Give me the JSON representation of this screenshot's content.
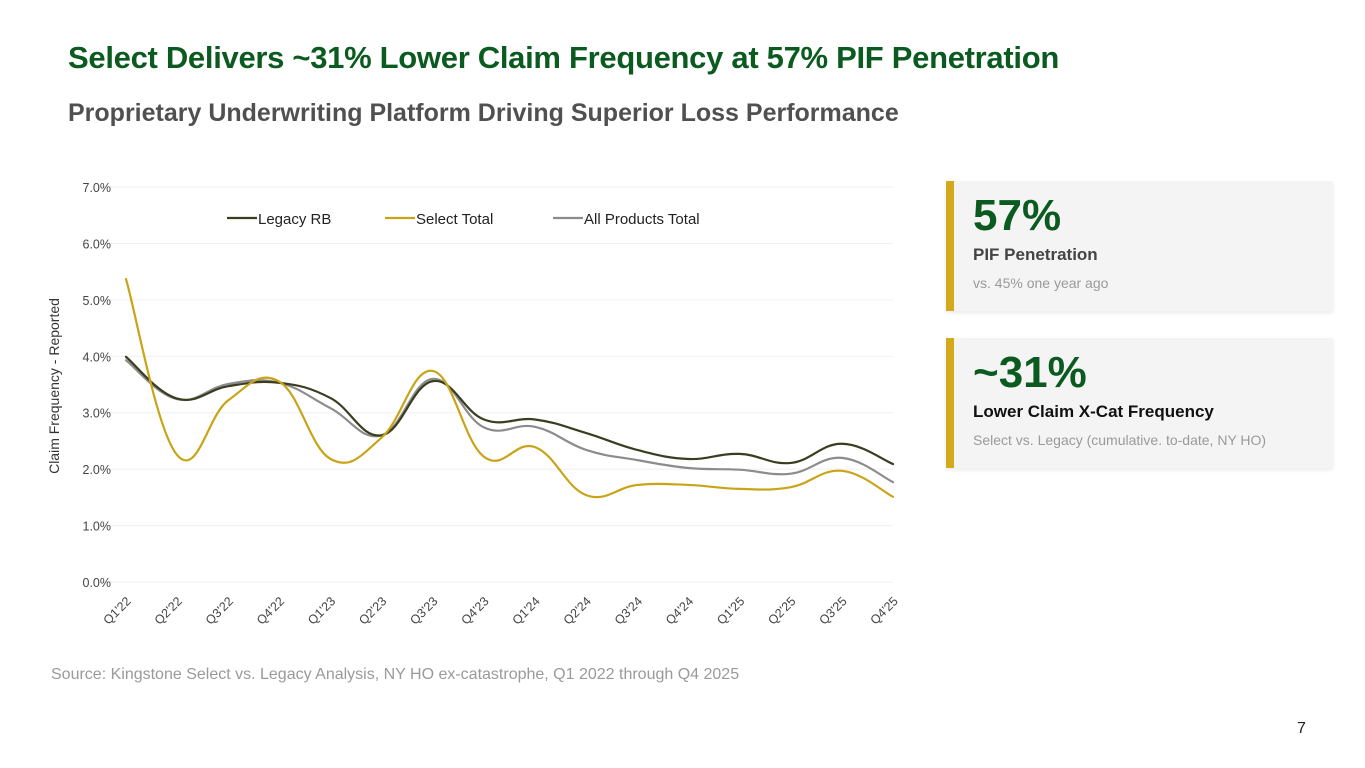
{
  "header": {
    "title": "Select Delivers ~31% Lower Claim Frequency at 57% PIF Penetration",
    "subtitle": "Proprietary Underwriting Platform Driving Superior Loss Performance"
  },
  "cards": [
    {
      "value": "57%",
      "label": "PIF Penetration",
      "note": "vs. 45% one year ago"
    },
    {
      "value": "~31%",
      "label": "Lower Claim X-Cat Frequency",
      "note": "Select vs. Legacy (cumulative. to-date, NY HO)"
    }
  ],
  "footer": {
    "source": "Source: Kingstone Select vs. Legacy Analysis, NY HO ex-catastrophe, Q1 2022 through Q4 2025",
    "page_number": "7"
  },
  "colors": {
    "brand_green": "#0b5a1f",
    "accent_gold": "#d4a91a"
  },
  "chart_data": {
    "type": "line",
    "title": "",
    "xlabel": "",
    "ylabel": "Claim Frequency - Reported",
    "ylim": [
      0,
      7
    ],
    "yticks": [
      0,
      1,
      2,
      3,
      4,
      5,
      6,
      7
    ],
    "ytick_format": "percent_1dp",
    "grid": true,
    "legend_position": "top",
    "smooth": true,
    "categories": [
      "Q1'22",
      "Q2'22",
      "Q3'22",
      "Q4'22",
      "Q1'23",
      "Q2'23",
      "Q3'23",
      "Q4'23",
      "Q1'24",
      "Q2'24",
      "Q3'24",
      "Q4'24",
      "Q1'25",
      "Q2'25",
      "Q3'25",
      "Q4'25"
    ],
    "series": [
      {
        "name": "Legacy RB",
        "color": "#3a3d1f",
        "values": [
          3.99,
          3.25,
          3.47,
          3.53,
          3.26,
          2.6,
          3.56,
          2.88,
          2.88,
          2.64,
          2.34,
          2.18,
          2.27,
          2.11,
          2.45,
          2.09
        ]
      },
      {
        "name": "Select Total",
        "color": "#c9a417",
        "values": [
          5.37,
          2.25,
          3.22,
          3.55,
          2.18,
          2.56,
          3.74,
          2.22,
          2.39,
          1.54,
          1.72,
          1.72,
          1.65,
          1.68,
          1.97,
          1.51
        ]
      },
      {
        "name": "All Products Total",
        "color": "#8c8c8c",
        "values": [
          3.93,
          3.24,
          3.51,
          3.53,
          3.08,
          2.6,
          3.6,
          2.74,
          2.75,
          2.34,
          2.16,
          2.02,
          1.99,
          1.92,
          2.2,
          1.77
        ]
      }
    ]
  }
}
